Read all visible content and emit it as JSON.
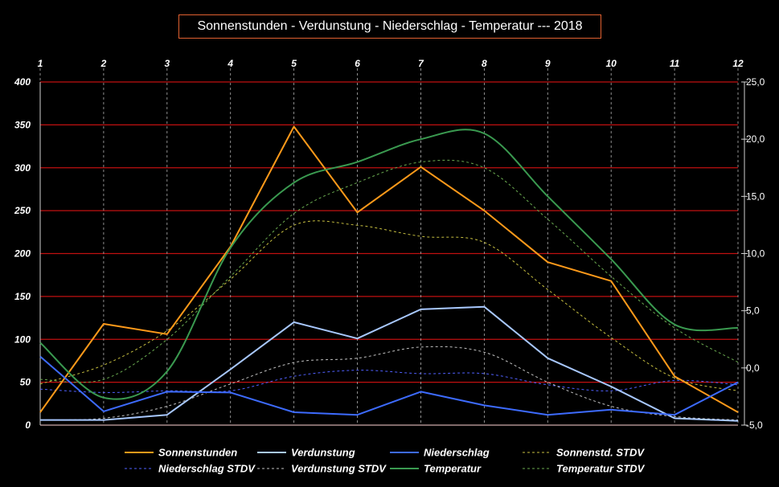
{
  "title": "Sonnenstunden - Verdunstung - Niederschlag - Temperatur ---  2018",
  "chart_data": {
    "type": "line",
    "title": "Sonnenstunden - Verdunstung - Niederschlag - Temperatur ---  2018",
    "x": [
      1,
      2,
      3,
      4,
      5,
      6,
      7,
      8,
      9,
      10,
      11,
      12
    ],
    "x_tick_labels": [
      "1",
      "2",
      "3",
      "4",
      "5",
      "6",
      "7",
      "8",
      "9",
      "10",
      "11",
      "12"
    ],
    "ylim": [
      0,
      400
    ],
    "y_ticks": [
      0,
      50,
      100,
      150,
      200,
      250,
      300,
      350,
      400
    ],
    "y_tick_labels": [
      "0",
      "50",
      "100",
      "150",
      "200",
      "250",
      "300",
      "350",
      "400"
    ],
    "y2lim": [
      -5,
      25
    ],
    "y2_ticks": [
      -5,
      0,
      5,
      10,
      15,
      20,
      25
    ],
    "y2_tick_labels": [
      "-5,0",
      "0,0",
      "5,0",
      "10,0",
      "15,0",
      "20,0",
      "25,0"
    ],
    "grid": "horizontal red lines, vertical dashed lines",
    "legend_position": "bottom",
    "series": [
      {
        "name": "Sonnenstunden",
        "axis": "left",
        "style": "solid",
        "smooth": false,
        "color": "#ff9a1a",
        "values": [
          15,
          118,
          106,
          208,
          348,
          248,
          301,
          250,
          190,
          168,
          57,
          15
        ]
      },
      {
        "name": "Verdunstung",
        "axis": "left",
        "style": "solid",
        "smooth": false,
        "color": "#a8c8ff",
        "values": [
          6,
          6,
          12,
          65,
          120,
          101,
          135,
          138,
          78,
          45,
          8,
          5
        ]
      },
      {
        "name": "Niederschlag",
        "axis": "left",
        "style": "solid",
        "smooth": false,
        "color": "#3d6bff",
        "values": [
          80,
          16,
          39,
          38,
          15,
          12,
          39,
          23,
          12,
          18,
          12,
          50
        ]
      },
      {
        "name": "Sonnenstd. STDV",
        "axis": "left",
        "style": "dashed",
        "smooth": true,
        "color": "#c8c040",
        "values": [
          48,
          70,
          110,
          170,
          233,
          233,
          220,
          213,
          158,
          102,
          55,
          40
        ]
      },
      {
        "name": "Niederschlag STDV",
        "axis": "left",
        "style": "dashed",
        "smooth": true,
        "color": "#5060ff",
        "values": [
          42,
          38,
          40,
          40,
          57,
          64,
          60,
          60,
          47,
          40,
          52,
          47
        ]
      },
      {
        "name": "Verdunstung STDV",
        "axis": "left",
        "style": "dashed",
        "smooth": true,
        "color": "#c0c0c0",
        "values": [
          6,
          8,
          22,
          48,
          73,
          78,
          91,
          85,
          50,
          22,
          10,
          6
        ]
      },
      {
        "name": "Temperatur",
        "axis": "right",
        "style": "solid",
        "smooth": true,
        "color": "#3a9a50",
        "values": [
          2.2,
          -2.6,
          -0.3,
          10.5,
          16.2,
          18.0,
          20.0,
          20.5,
          15.0,
          9.5,
          3.8,
          3.5
        ]
      },
      {
        "name": "Temperatur STDV",
        "axis": "right",
        "style": "dashed",
        "smooth": true,
        "color": "#6aaa50",
        "values": [
          -1.0,
          -1.0,
          2.5,
          8.0,
          13.5,
          16.2,
          18.0,
          17.5,
          13.0,
          8.0,
          3.5,
          0.5
        ]
      }
    ]
  }
}
